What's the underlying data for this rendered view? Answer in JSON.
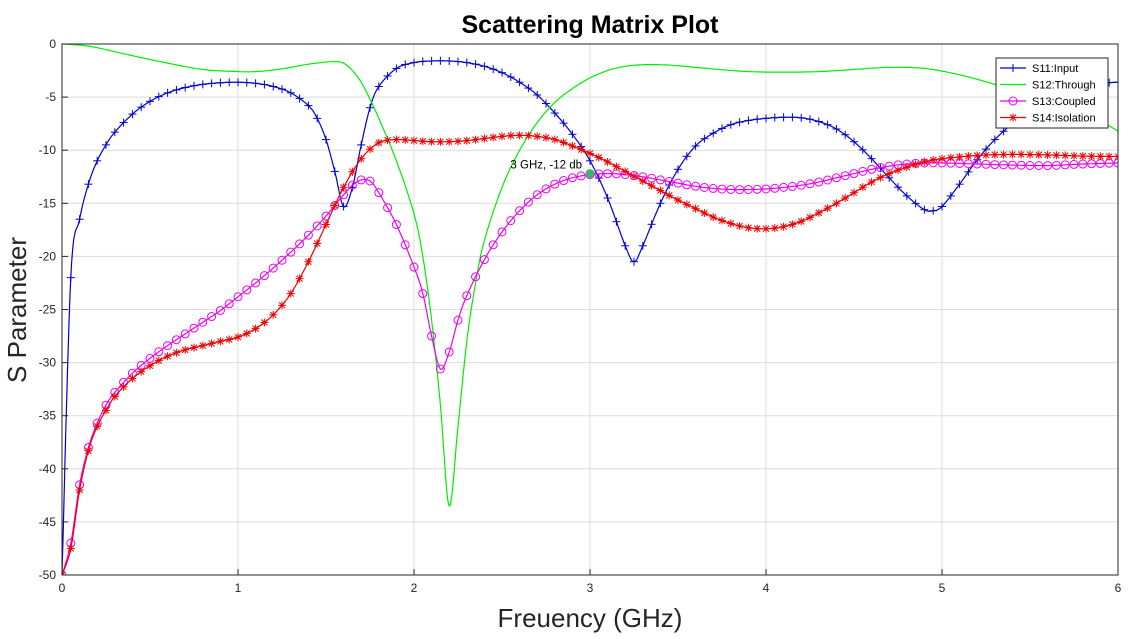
{
  "chart_data": {
    "type": "line",
    "title": "Scattering Matrix Plot",
    "xlabel": "Freuency (GHz)",
    "ylabel": "S Parameter",
    "xlim": [
      0,
      6
    ],
    "ylim": [
      -50,
      0
    ],
    "xticks": [
      "0",
      "1",
      "2",
      "3",
      "4",
      "5",
      "6"
    ],
    "yticks": [
      "0",
      "-5",
      "-10",
      "-15",
      "-20",
      "-25",
      "-30",
      "-35",
      "-40",
      "-45",
      "-50"
    ],
    "grid": true,
    "legend_position": "top-right",
    "series": [
      {
        "name": "S11:Input",
        "color": "#0000cd",
        "marker": "plus",
        "points": [
          [
            0,
            -50
          ],
          [
            0.05,
            -22
          ],
          [
            0.1,
            -16.5
          ],
          [
            0.15,
            -13.2
          ],
          [
            0.2,
            -11
          ],
          [
            0.25,
            -9.5
          ],
          [
            0.3,
            -8.3
          ],
          [
            0.4,
            -6.6
          ],
          [
            0.5,
            -5.4
          ],
          [
            0.6,
            -4.6
          ],
          [
            0.7,
            -4.1
          ],
          [
            0.8,
            -3.8
          ],
          [
            0.9,
            -3.65
          ],
          [
            1.0,
            -3.6
          ],
          [
            1.1,
            -3.7
          ],
          [
            1.2,
            -4.0
          ],
          [
            1.3,
            -4.6
          ],
          [
            1.4,
            -5.8
          ],
          [
            1.45,
            -7.0
          ],
          [
            1.5,
            -9.0
          ],
          [
            1.55,
            -12.0
          ],
          [
            1.6,
            -15.3
          ],
          [
            1.65,
            -13.5
          ],
          [
            1.7,
            -9.5
          ],
          [
            1.75,
            -6.0
          ],
          [
            1.8,
            -4.0
          ],
          [
            1.9,
            -2.3
          ],
          [
            2.0,
            -1.75
          ],
          [
            2.1,
            -1.6
          ],
          [
            2.2,
            -1.6
          ],
          [
            2.3,
            -1.75
          ],
          [
            2.4,
            -2.1
          ],
          [
            2.5,
            -2.7
          ],
          [
            2.6,
            -3.6
          ],
          [
            2.7,
            -4.8
          ],
          [
            2.8,
            -6.5
          ],
          [
            2.9,
            -8.5
          ],
          [
            3.0,
            -11.0
          ],
          [
            3.1,
            -14.5
          ],
          [
            3.2,
            -19.0
          ],
          [
            3.25,
            -20.5
          ],
          [
            3.3,
            -19.0
          ],
          [
            3.4,
            -15.0
          ],
          [
            3.5,
            -11.8
          ],
          [
            3.6,
            -9.6
          ],
          [
            3.7,
            -8.4
          ],
          [
            3.8,
            -7.6
          ],
          [
            3.9,
            -7.2
          ],
          [
            4.0,
            -7.0
          ],
          [
            4.1,
            -6.9
          ],
          [
            4.2,
            -6.95
          ],
          [
            4.3,
            -7.3
          ],
          [
            4.4,
            -8.0
          ],
          [
            4.5,
            -9.2
          ],
          [
            4.6,
            -10.8
          ],
          [
            4.7,
            -12.6
          ],
          [
            4.8,
            -14.3
          ],
          [
            4.9,
            -15.6
          ],
          [
            4.95,
            -15.7
          ],
          [
            5.0,
            -15.3
          ],
          [
            5.1,
            -13.2
          ],
          [
            5.2,
            -10.9
          ],
          [
            5.3,
            -9.0
          ],
          [
            5.4,
            -7.5
          ],
          [
            5.5,
            -6.2
          ],
          [
            5.6,
            -5.2
          ],
          [
            5.7,
            -4.5
          ],
          [
            5.8,
            -4.0
          ],
          [
            5.9,
            -3.7
          ],
          [
            6.0,
            -3.6
          ]
        ]
      },
      {
        "name": "S12:Through",
        "color": "#00ee00",
        "marker": "none",
        "points": [
          [
            0,
            0
          ],
          [
            0.1,
            -0.1
          ],
          [
            0.2,
            -0.35
          ],
          [
            0.4,
            -1.1
          ],
          [
            0.6,
            -1.8
          ],
          [
            0.8,
            -2.4
          ],
          [
            1.0,
            -2.6
          ],
          [
            1.1,
            -2.6
          ],
          [
            1.2,
            -2.45
          ],
          [
            1.3,
            -2.2
          ],
          [
            1.4,
            -1.9
          ],
          [
            1.5,
            -1.7
          ],
          [
            1.55,
            -1.65
          ],
          [
            1.6,
            -1.8
          ],
          [
            1.65,
            -2.5
          ],
          [
            1.7,
            -3.6
          ],
          [
            1.75,
            -5.2
          ],
          [
            1.8,
            -7.0
          ],
          [
            1.9,
            -11.0
          ],
          [
            2.0,
            -16.0
          ],
          [
            2.05,
            -20.0
          ],
          [
            2.1,
            -26.0
          ],
          [
            2.15,
            -34.0
          ],
          [
            2.2,
            -43.5
          ],
          [
            2.25,
            -36.0
          ],
          [
            2.3,
            -28.0
          ],
          [
            2.35,
            -22.5
          ],
          [
            2.4,
            -18.5
          ],
          [
            2.5,
            -13.5
          ],
          [
            2.6,
            -10.0
          ],
          [
            2.7,
            -7.4
          ],
          [
            2.8,
            -5.5
          ],
          [
            2.9,
            -4.2
          ],
          [
            3.0,
            -3.2
          ],
          [
            3.1,
            -2.5
          ],
          [
            3.2,
            -2.1
          ],
          [
            3.3,
            -1.95
          ],
          [
            3.4,
            -1.95
          ],
          [
            3.5,
            -2.05
          ],
          [
            3.7,
            -2.35
          ],
          [
            3.9,
            -2.6
          ],
          [
            4.1,
            -2.65
          ],
          [
            4.3,
            -2.6
          ],
          [
            4.5,
            -2.4
          ],
          [
            4.7,
            -2.2
          ],
          [
            4.9,
            -2.3
          ],
          [
            5.1,
            -2.9
          ],
          [
            5.3,
            -3.8
          ],
          [
            5.5,
            -4.8
          ],
          [
            5.7,
            -5.8
          ],
          [
            5.85,
            -6.8
          ],
          [
            6.0,
            -8.2
          ]
        ]
      },
      {
        "name": "S13:Coupled",
        "color": "#ee00ee",
        "marker": "circle",
        "points": [
          [
            0,
            -50
          ],
          [
            0.05,
            -47
          ],
          [
            0.1,
            -41.5
          ],
          [
            0.15,
            -38
          ],
          [
            0.2,
            -35.7
          ],
          [
            0.25,
            -34
          ],
          [
            0.3,
            -32.8
          ],
          [
            0.4,
            -31
          ],
          [
            0.5,
            -29.6
          ],
          [
            0.6,
            -28.4
          ],
          [
            0.7,
            -27.3
          ],
          [
            0.8,
            -26.2
          ],
          [
            0.9,
            -25.1
          ],
          [
            1.0,
            -23.8
          ],
          [
            1.1,
            -22.5
          ],
          [
            1.2,
            -21.1
          ],
          [
            1.3,
            -19.6
          ],
          [
            1.4,
            -18.0
          ],
          [
            1.5,
            -16.2
          ],
          [
            1.6,
            -14.2
          ],
          [
            1.65,
            -13.3
          ],
          [
            1.7,
            -12.8
          ],
          [
            1.75,
            -12.9
          ],
          [
            1.8,
            -14.0
          ],
          [
            1.9,
            -17.0
          ],
          [
            2.0,
            -21.0
          ],
          [
            2.05,
            -23.5
          ],
          [
            2.1,
            -27.5
          ],
          [
            2.15,
            -30.6
          ],
          [
            2.2,
            -29.0
          ],
          [
            2.25,
            -26.0
          ],
          [
            2.3,
            -23.7
          ],
          [
            2.4,
            -20.3
          ],
          [
            2.5,
            -17.7
          ],
          [
            2.6,
            -15.7
          ],
          [
            2.7,
            -14.2
          ],
          [
            2.8,
            -13.2
          ],
          [
            2.9,
            -12.6
          ],
          [
            3.0,
            -12.3
          ],
          [
            3.1,
            -12.2
          ],
          [
            3.2,
            -12.3
          ],
          [
            3.3,
            -12.5
          ],
          [
            3.4,
            -12.8
          ],
          [
            3.5,
            -13.1
          ],
          [
            3.6,
            -13.4
          ],
          [
            3.7,
            -13.6
          ],
          [
            3.8,
            -13.7
          ],
          [
            3.9,
            -13.7
          ],
          [
            4.0,
            -13.65
          ],
          [
            4.1,
            -13.5
          ],
          [
            4.2,
            -13.3
          ],
          [
            4.3,
            -13.0
          ],
          [
            4.4,
            -12.6
          ],
          [
            4.5,
            -12.2
          ],
          [
            4.6,
            -11.8
          ],
          [
            4.7,
            -11.5
          ],
          [
            4.8,
            -11.3
          ],
          [
            4.9,
            -11.2
          ],
          [
            5.0,
            -11.2
          ],
          [
            5.2,
            -11.3
          ],
          [
            5.4,
            -11.4
          ],
          [
            5.6,
            -11.45
          ],
          [
            5.8,
            -11.3
          ],
          [
            6.0,
            -11.2
          ]
        ]
      },
      {
        "name": "S14:Isolation",
        "color": "#ee0000",
        "marker": "asterisk",
        "points": [
          [
            0,
            -50
          ],
          [
            0.05,
            -47.5
          ],
          [
            0.1,
            -42
          ],
          [
            0.15,
            -38.3
          ],
          [
            0.2,
            -36
          ],
          [
            0.25,
            -34.5
          ],
          [
            0.3,
            -33.2
          ],
          [
            0.4,
            -31.5
          ],
          [
            0.5,
            -30.3
          ],
          [
            0.6,
            -29.4
          ],
          [
            0.7,
            -28.8
          ],
          [
            0.8,
            -28.4
          ],
          [
            0.9,
            -28.0
          ],
          [
            1.0,
            -27.6
          ],
          [
            1.1,
            -26.8
          ],
          [
            1.2,
            -25.5
          ],
          [
            1.3,
            -23.5
          ],
          [
            1.4,
            -20.5
          ],
          [
            1.5,
            -17.0
          ],
          [
            1.6,
            -13.5
          ],
          [
            1.7,
            -10.8
          ],
          [
            1.8,
            -9.3
          ],
          [
            1.9,
            -9.0
          ],
          [
            2.0,
            -9.1
          ],
          [
            2.1,
            -9.2
          ],
          [
            2.2,
            -9.2
          ],
          [
            2.3,
            -9.1
          ],
          [
            2.4,
            -8.9
          ],
          [
            2.5,
            -8.7
          ],
          [
            2.6,
            -8.6
          ],
          [
            2.7,
            -8.7
          ],
          [
            2.8,
            -9.0
          ],
          [
            2.9,
            -9.6
          ],
          [
            3.0,
            -10.3
          ],
          [
            3.1,
            -11.1
          ],
          [
            3.2,
            -12.0
          ],
          [
            3.3,
            -12.9
          ],
          [
            3.4,
            -13.8
          ],
          [
            3.5,
            -14.7
          ],
          [
            3.6,
            -15.5
          ],
          [
            3.7,
            -16.3
          ],
          [
            3.8,
            -16.9
          ],
          [
            3.9,
            -17.3
          ],
          [
            4.0,
            -17.4
          ],
          [
            4.1,
            -17.2
          ],
          [
            4.2,
            -16.7
          ],
          [
            4.3,
            -15.9
          ],
          [
            4.4,
            -15.0
          ],
          [
            4.5,
            -14.0
          ],
          [
            4.6,
            -13.0
          ],
          [
            4.7,
            -12.2
          ],
          [
            4.8,
            -11.6
          ],
          [
            4.9,
            -11.1
          ],
          [
            5.0,
            -10.8
          ],
          [
            5.2,
            -10.5
          ],
          [
            5.4,
            -10.4
          ],
          [
            5.6,
            -10.45
          ],
          [
            5.8,
            -10.55
          ],
          [
            6.0,
            -10.6
          ]
        ]
      }
    ],
    "annotations": [
      {
        "text": "3 GHz, -12 db",
        "x": 3.0,
        "y": -12.2,
        "color": "#3cb371"
      }
    ]
  }
}
